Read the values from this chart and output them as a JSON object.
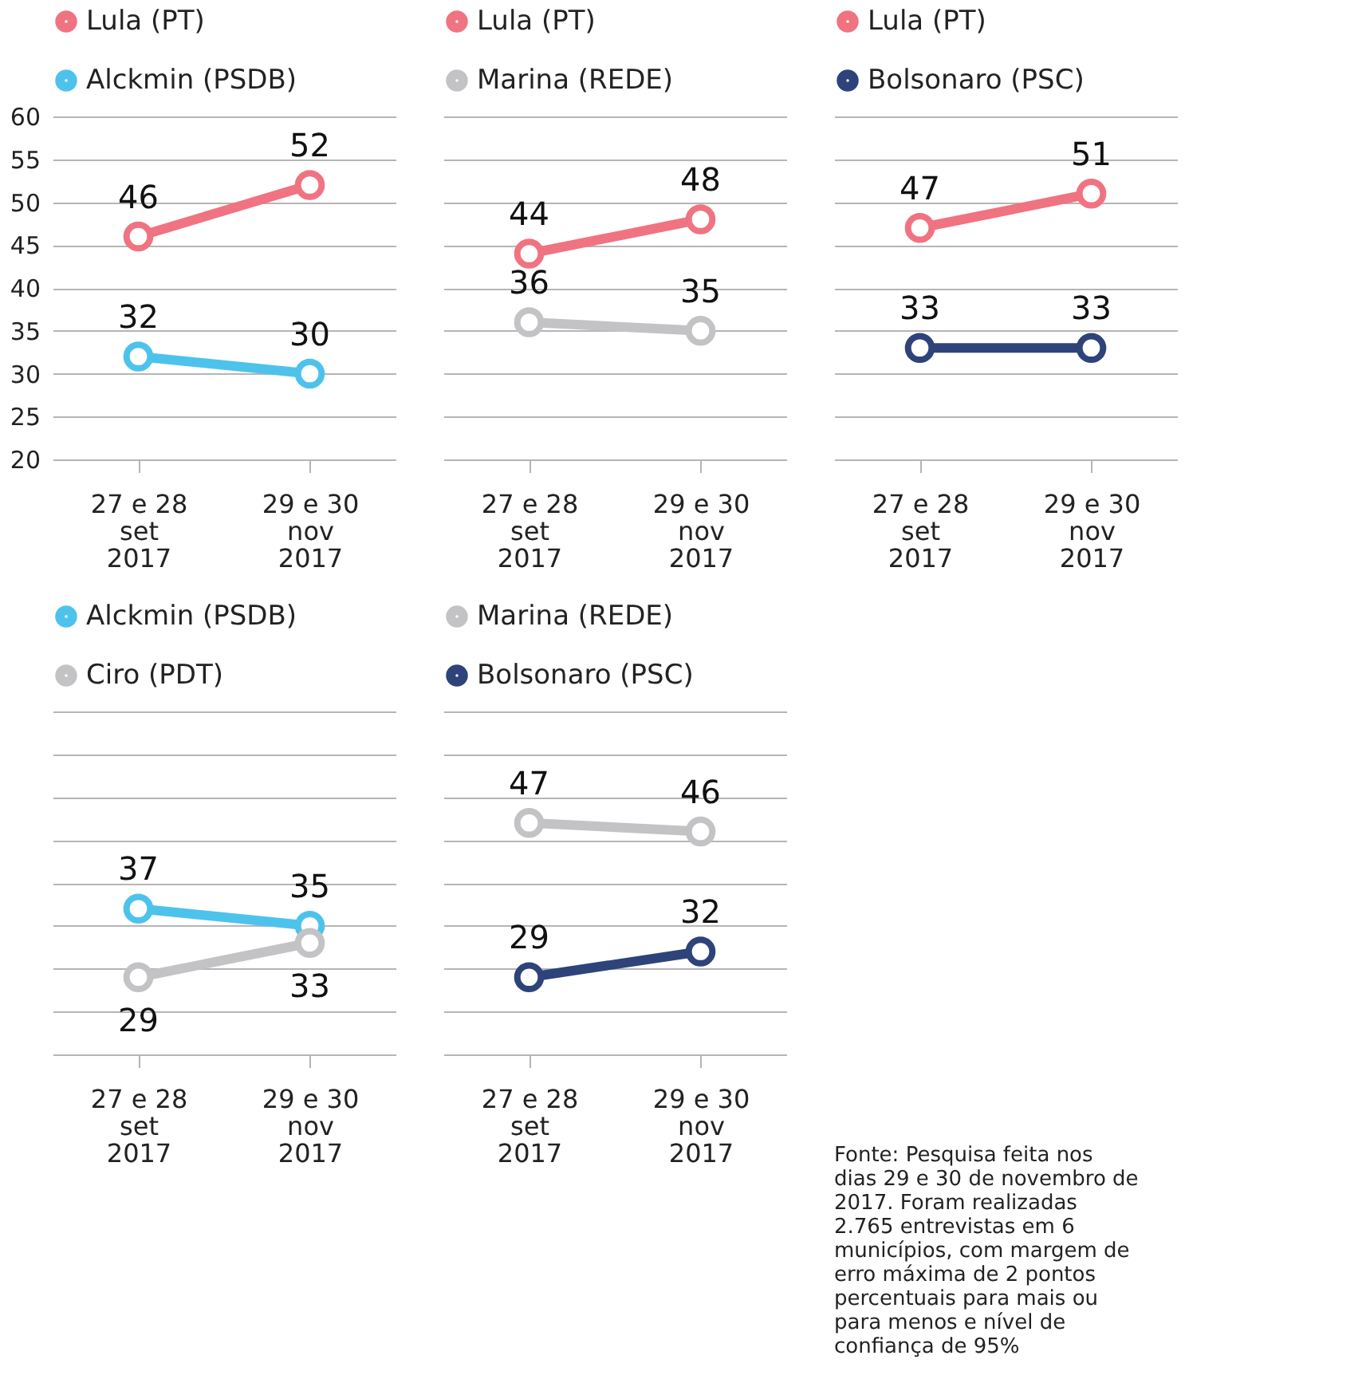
{
  "chart_data": [
    {
      "type": "line",
      "categories": [
        "27 e 28\nset\n2017",
        "29 e 30\nnov\n2017"
      ],
      "ylim": [
        20,
        60
      ],
      "yticks": [
        20,
        25,
        30,
        35,
        40,
        45,
        50,
        55,
        60
      ],
      "grid": "y",
      "legend": "top left",
      "marker": "circle",
      "data_labels": true,
      "series": [
        {
          "name": "Lula (PT)",
          "color": "#f07382",
          "values": [
            46,
            52
          ]
        },
        {
          "name": "Alckmin (PSDB)",
          "color": "#4dc3ec",
          "values": [
            32,
            30
          ]
        }
      ]
    },
    {
      "type": "line",
      "categories": [
        "27 e 28\nset\n2017",
        "29 e 30\nnov\n2017"
      ],
      "ylim": [
        20,
        60
      ],
      "yticks": [
        20,
        25,
        30,
        35,
        40,
        45,
        50,
        55,
        60
      ],
      "grid": "y",
      "legend": "top left",
      "marker": "circle",
      "data_labels": true,
      "tick_labels": "x",
      "series": [
        {
          "name": "Lula (PT)",
          "color": "#f07382",
          "values": [
            44,
            48
          ]
        },
        {
          "name": "Marina (REDE)",
          "color": "#c3c3c6",
          "values": [
            36,
            35
          ]
        }
      ]
    },
    {
      "type": "line",
      "categories": [
        "27 e 28\nset\n2017",
        "29 e 30\nnov\n2017"
      ],
      "ylim": [
        20,
        60
      ],
      "yticks": [
        20,
        25,
        30,
        35,
        40,
        45,
        50,
        55,
        60
      ],
      "grid": "y",
      "legend": "top left",
      "marker": "circle",
      "data_labels": true,
      "tick_labels": "x",
      "series": [
        {
          "name": "Lula (PT)",
          "color": "#f07382",
          "values": [
            47,
            51
          ]
        },
        {
          "name": "Bolsonaro (PSC)",
          "color": "#2e4379",
          "values": [
            33,
            33
          ]
        }
      ]
    },
    {
      "type": "line",
      "categories": [
        "27 e 28\nset\n2017",
        "29 e 30\nnov\n2017"
      ],
      "ylim": [
        20,
        60
      ],
      "yticks": [
        20,
        25,
        30,
        35,
        40,
        45,
        50,
        55,
        60
      ],
      "grid": "y",
      "legend": "top left",
      "marker": "circle",
      "data_labels": true,
      "tick_labels": "x",
      "series": [
        {
          "name": "Alckmin (PSDB)",
          "color": "#4dc3ec",
          "values": [
            37,
            35
          ]
        },
        {
          "name": "Ciro (PDT)",
          "color": "#c3c3c6",
          "values": [
            29,
            33
          ]
        }
      ]
    },
    {
      "type": "line",
      "categories": [
        "27 e 28\nset\n2017",
        "29 e 30\nnov\n2017"
      ],
      "ylim": [
        20,
        60
      ],
      "yticks": [
        20,
        25,
        30,
        35,
        40,
        45,
        50,
        55,
        60
      ],
      "grid": "y",
      "legend": "top left",
      "marker": "circle",
      "data_labels": true,
      "tick_labels": "x",
      "annotations": [
        "Fonte: Pesquisa feita nos dias 29 e 30 de novembro de 2017. Foram realizadas 2.765 entrevistas em 6 municípios, com margem de erro máxima de 2 pontos percentuais para mais ou para menos e nível de confiança de 95%"
      ],
      "series": [
        {
          "name": "Marina (REDE)",
          "color": "#c3c3c6",
          "values": [
            47,
            46
          ]
        },
        {
          "name": "Bolsonaro (PSC)",
          "color": "#2e4379",
          "values": [
            29,
            32
          ]
        }
      ]
    }
  ]
}
